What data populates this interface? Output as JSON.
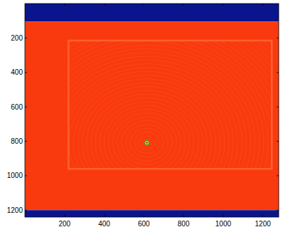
{
  "chart_data": {
    "type": "image",
    "xlim": [
      0,
      1280
    ],
    "ylim": [
      0,
      1240
    ],
    "xticks": [
      200,
      400,
      600,
      800,
      1000,
      1200
    ],
    "yticks": [
      200,
      400,
      600,
      800,
      1000,
      1200
    ],
    "tick_labels": true,
    "regions": [
      {
        "x": [
          0,
          1280
        ],
        "y": [
          0,
          105
        ],
        "color": "#0a148c"
      },
      {
        "x": [
          0,
          1280
        ],
        "y": [
          105,
          1200
        ],
        "color": "#f93a0e"
      },
      {
        "x": [
          0,
          1280
        ],
        "y": [
          1200,
          1240
        ],
        "color": "#0a148c"
      }
    ],
    "frame": {
      "x": [
        220,
        1245
      ],
      "y": [
        215,
        960
      ],
      "color": "#ff6030"
    },
    "spot": {
      "x": 615,
      "y": 808,
      "color": "#e8e000"
    }
  }
}
